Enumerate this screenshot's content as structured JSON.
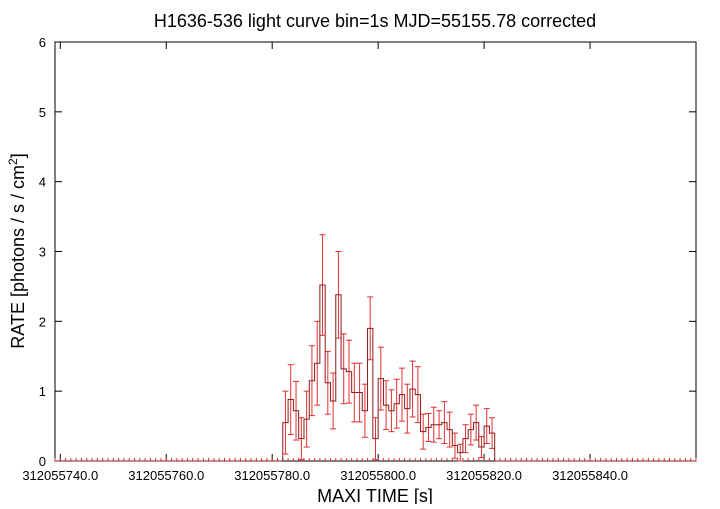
{
  "chart_data": {
    "type": "line",
    "title": "H1636-536 light curve bin=1s MJD=55155.78 corrected",
    "xlabel": "MAXI TIME [s]",
    "ylabel_main": "RATE [photons / s / cm",
    "ylabel_sup": "2",
    "ylabel_end": "]",
    "xlim": [
      312055739,
      312055860
    ],
    "ylim": [
      0,
      6
    ],
    "x_ticks": [
      {
        "value": 312055740,
        "label": "312055740.0"
      },
      {
        "value": 312055760,
        "label": "312055760.0"
      },
      {
        "value": 312055780,
        "label": "312055780.0"
      },
      {
        "value": 312055800,
        "label": "312055800.0"
      },
      {
        "value": 312055820,
        "label": "312055820.0"
      },
      {
        "value": 312055840,
        "label": "312055840.0"
      }
    ],
    "y_ticks": [
      {
        "value": 0,
        "label": "0"
      },
      {
        "value": 1,
        "label": "1"
      },
      {
        "value": 2,
        "label": "2"
      },
      {
        "value": 3,
        "label": "3"
      },
      {
        "value": 4,
        "label": "4"
      },
      {
        "value": 5,
        "label": "5"
      },
      {
        "value": 6,
        "label": "6"
      }
    ],
    "bin_width": 1,
    "x_start": 312055739,
    "rates": [
      0,
      0,
      0,
      0,
      0,
      0,
      0,
      0,
      0,
      0,
      0,
      0,
      0,
      0,
      0,
      0,
      0,
      0,
      0,
      0,
      0,
      0,
      0,
      0,
      0,
      0,
      0,
      0,
      0,
      0,
      0,
      0,
      0,
      0,
      0,
      0,
      0,
      0,
      0,
      0,
      0,
      0,
      0,
      0.55,
      0.88,
      0.72,
      0.32,
      0.6,
      1.15,
      1.4,
      2.52,
      1.12,
      0.86,
      2.38,
      1.32,
      1.28,
      0.98,
      0.98,
      0.72,
      1.9,
      0.32,
      1.18,
      0.8,
      0.72,
      0.82,
      0.95,
      0.75,
      1.03,
      0.95,
      0.42,
      0.48,
      0.52,
      0.52,
      0.55,
      0.45,
      0.22,
      0.12,
      0.32,
      0.45,
      0.55,
      0.2,
      0.5,
      0.4,
      0,
      0,
      0,
      0,
      0,
      0,
      0,
      0,
      0,
      0,
      0,
      0,
      0,
      0,
      0,
      0,
      0,
      0,
      0,
      0,
      0,
      0,
      0,
      0,
      0,
      0,
      0,
      0,
      0,
      0,
      0,
      0,
      0,
      0,
      0,
      0,
      0,
      0
    ],
    "errors": [
      0,
      0,
      0,
      0,
      0,
      0,
      0,
      0,
      0,
      0,
      0,
      0,
      0,
      0,
      0,
      0,
      0,
      0,
      0,
      0,
      0,
      0,
      0,
      0,
      0,
      0,
      0,
      0,
      0,
      0,
      0,
      0,
      0,
      0,
      0,
      0,
      0,
      0,
      0,
      0,
      0,
      0,
      0,
      0.45,
      0.5,
      0.42,
      0.3,
      0.4,
      0.5,
      0.6,
      0.72,
      0.45,
      0.4,
      0.62,
      0.5,
      0.45,
      0.42,
      0.42,
      0.38,
      0.45,
      0.3,
      0.45,
      0.35,
      0.3,
      0.35,
      0.38,
      0.35,
      0.4,
      0.4,
      0.25,
      0.2,
      0.25,
      0.2,
      0.3,
      0.25,
      0.18,
      0.12,
      0.2,
      0.22,
      0.25,
      0.15,
      0.25,
      0.22,
      0,
      0,
      0,
      0,
      0,
      0,
      0,
      0,
      0,
      0,
      0,
      0,
      0,
      0,
      0,
      0,
      0,
      0,
      0,
      0,
      0,
      0,
      0,
      0,
      0,
      0,
      0,
      0,
      0,
      0,
      0,
      0,
      0,
      0,
      0,
      0,
      0,
      0
    ],
    "series_color": "#8b1a1a",
    "error_color": "#e03030",
    "grid": false
  }
}
